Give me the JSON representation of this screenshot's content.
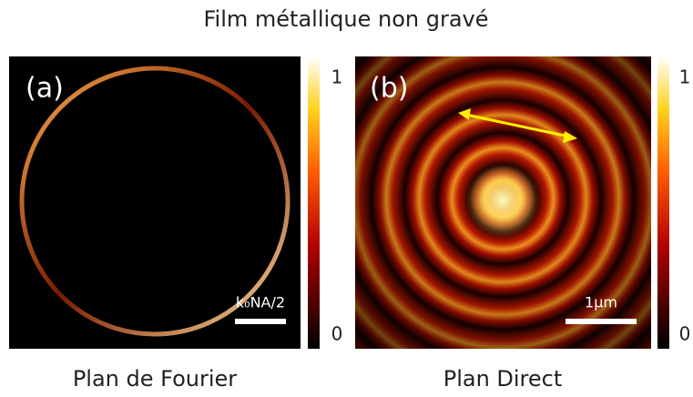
{
  "title": "Film métallique non gravé",
  "panels": [
    {
      "label": "(a)",
      "scale_label": "k₀NA/2",
      "colorbar_ticks": [
        1,
        0
      ],
      "caption": "Plan de Fourier"
    },
    {
      "label": "(b)",
      "scale_label": "1µm",
      "colorbar_ticks": [
        1,
        0
      ],
      "caption": "Plan Direct"
    }
  ]
}
